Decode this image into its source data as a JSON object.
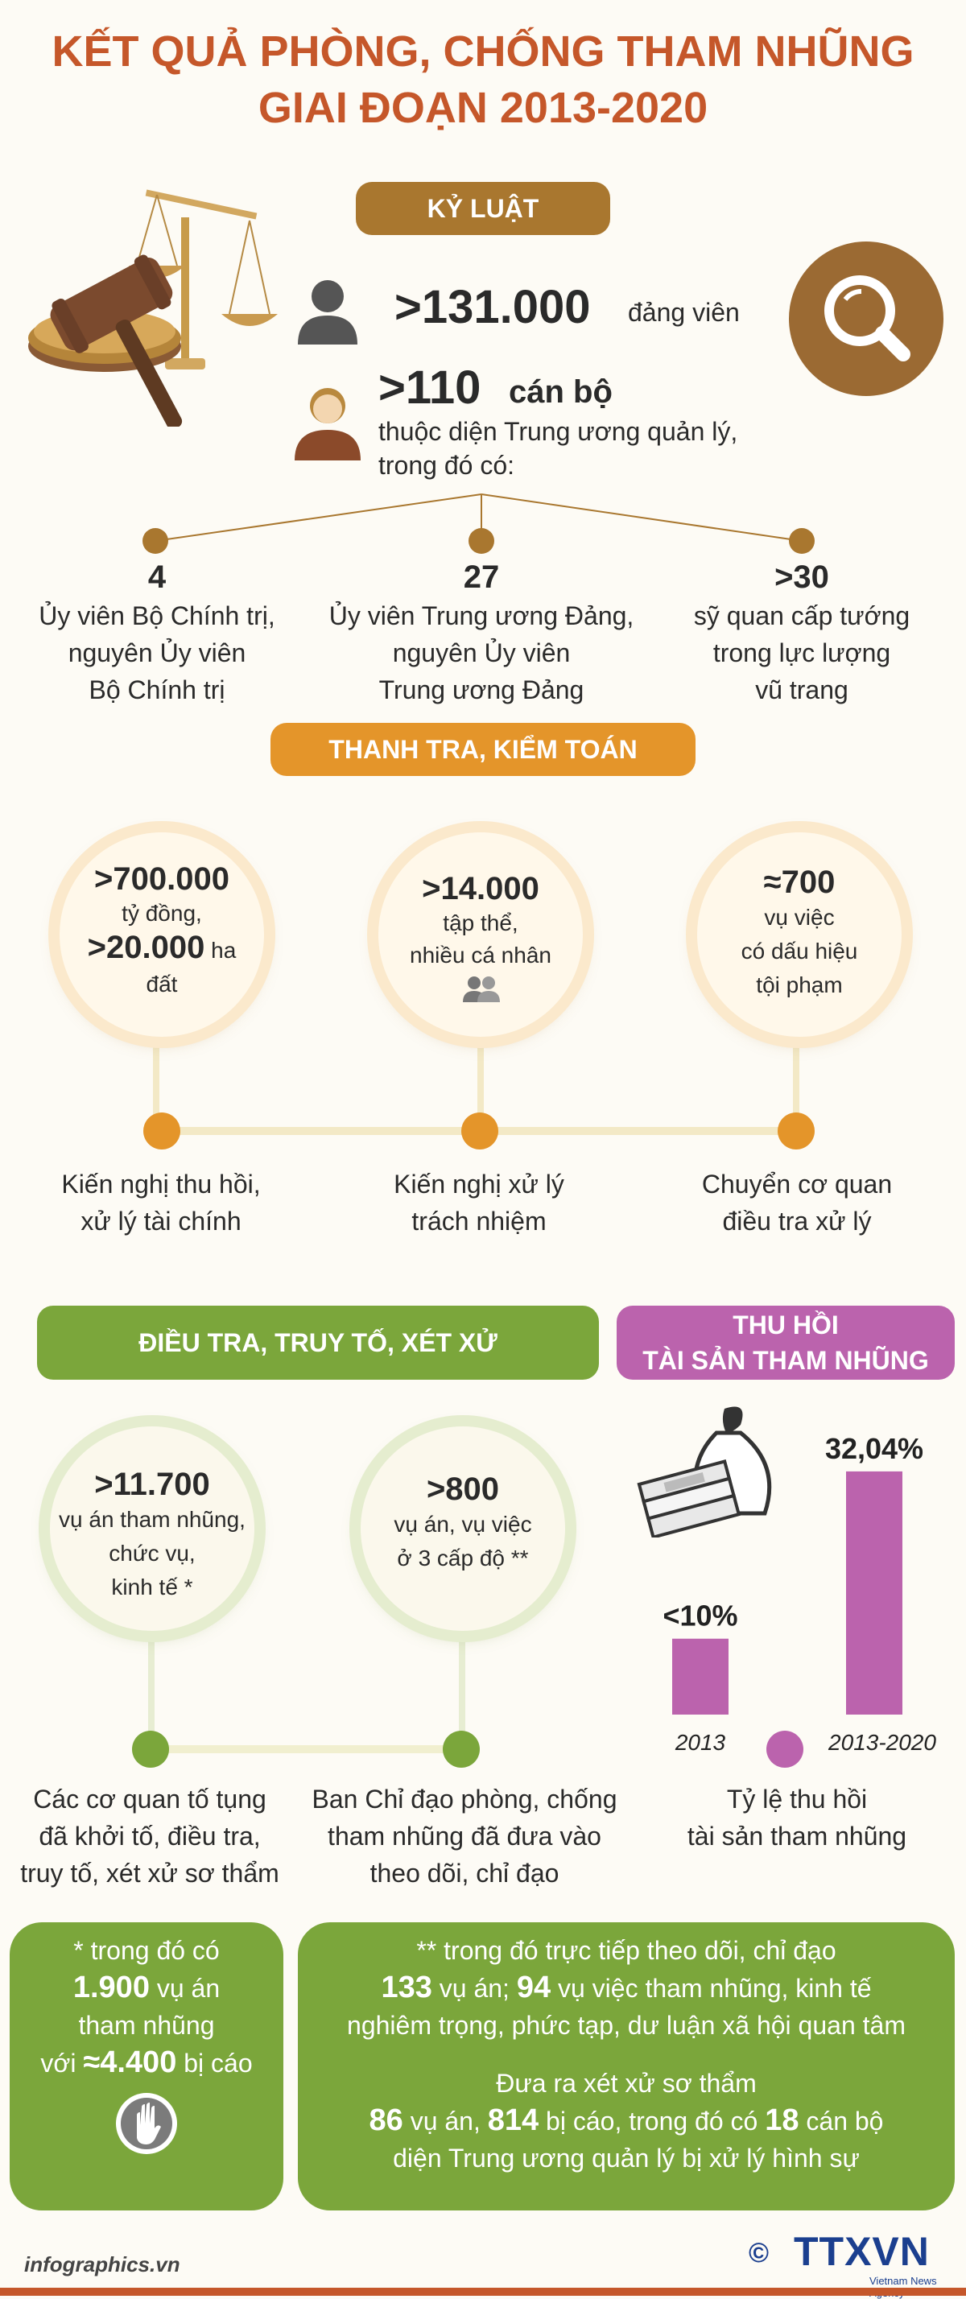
{
  "header": {
    "title_line1": "KẾT QUẢ PHÒNG, CHỐNG THAM NHŨNG",
    "title_line2": "GIAI ĐOẠN 2013-2020"
  },
  "discipline": {
    "section_label": "KỶ LUẬT",
    "members_value": ">131.000",
    "members_unit": "đảng viên",
    "cadres_value": ">110",
    "cadres_unit": "cán bộ",
    "cadres_desc_1": "thuộc diện Trung ương quản lý,",
    "cadres_desc_2": "trong đó có:",
    "items": [
      {
        "value": "4",
        "l1": "Ủy viên Bộ Chính trị,",
        "l2": "nguyên Ủy viên",
        "l3": "Bộ Chính trị"
      },
      {
        "value": "27",
        "l1": "Ủy viên Trung ương Đảng,",
        "l2": "nguyên Ủy viên",
        "l3": "Trung ương Đảng"
      },
      {
        "value": ">30",
        "l1": "sỹ quan cấp tướng",
        "l2": "trong lực lượng",
        "l3": "vũ trang"
      }
    ]
  },
  "inspection": {
    "section_label": "THANH TRA, KIỂM TOÁN",
    "c1": {
      "v1": ">700.000",
      "t1": "tỷ đồng,",
      "v2": ">20.000",
      "t2": "ha",
      "t3": "đất"
    },
    "c2": {
      "v1": ">14.000",
      "t1": "tập thể,",
      "t2": "nhiều cá nhân"
    },
    "c3": {
      "v1": "≈700",
      "t1": "vụ việc",
      "t2": "có dấu hiệu",
      "t3": "tội phạm"
    },
    "labels": [
      {
        "l1": "Kiến nghị thu hồi,",
        "l2": "xử lý tài chính"
      },
      {
        "l1": "Kiến nghị xử lý",
        "l2": "trách nhiệm"
      },
      {
        "l1": "Chuyển cơ quan",
        "l2": "điều tra xử lý"
      }
    ]
  },
  "investigation": {
    "section_label": "ĐIỀU TRA, TRUY TỐ, XÉT XỬ",
    "c1": {
      "v1": ">11.700",
      "t1": "vụ án tham nhũng,",
      "t2": "chức vụ,",
      "t3": "kinh tế *"
    },
    "c2": {
      "v1": ">800",
      "t1": "vụ án, vụ việc",
      "t2": "ở 3 cấp độ **"
    },
    "labels": [
      {
        "l1": "Các cơ quan tố tụng",
        "l2": "đã khởi tố, điều tra,",
        "l3": "truy tố, xét xử sơ thẩm"
      },
      {
        "l1": "Ban Chỉ đạo phòng, chống",
        "l2": "tham nhũng đã đưa vào",
        "l3": "theo dõi, chỉ đạo"
      }
    ]
  },
  "recovery": {
    "section_label_1": "THU HỒI",
    "section_label_2": "TÀI SẢN THAM NHŨNG",
    "caption_1": "Tỷ lệ thu hồi",
    "caption_2": "tài sản tham nhũng"
  },
  "chart_data": {
    "type": "bar",
    "categories": [
      "2013",
      "2013-2020"
    ],
    "values": [
      10,
      32.04
    ],
    "value_labels": [
      "<10%",
      "32,04%"
    ],
    "ylim": [
      0,
      35
    ],
    "color": "#bb63ad"
  },
  "notes": {
    "left": {
      "l1": "* trong đó có",
      "v1": "1.900",
      "t1": "vụ án",
      "l3": "tham nhũng",
      "t2": "với",
      "v2": "≈4.400",
      "t3": "bị cáo"
    },
    "right": {
      "l1": "** trong đó trực tiếp theo dõi, chỉ đạo",
      "v1": "133",
      "t1": "vụ án;",
      "v2": "94",
      "t2": "vụ việc tham nhũng, kinh tế",
      "l3": "nghiêm trọng, phức tạp, dư luận xã hội quan tâm",
      "l4": "Đưa ra xét xử sơ thẩm",
      "v3": "86",
      "t3": "vụ án,",
      "v4": "814",
      "t4": "bị cáo, trong đó có",
      "v5": "18",
      "t5": "cán bộ",
      "l6": "diện Trung ương quản lý bị xử lý hình sự"
    }
  },
  "footer": {
    "source": "infographics.vn",
    "logo_text": "TTXVN",
    "copyright": "©",
    "agency": "Vietnam News Agency"
  },
  "colors": {
    "brown": "#a9772f",
    "orange": "#e4952a",
    "green": "#7ba63b",
    "purple": "#bb63ad",
    "title": "#c5572a"
  }
}
